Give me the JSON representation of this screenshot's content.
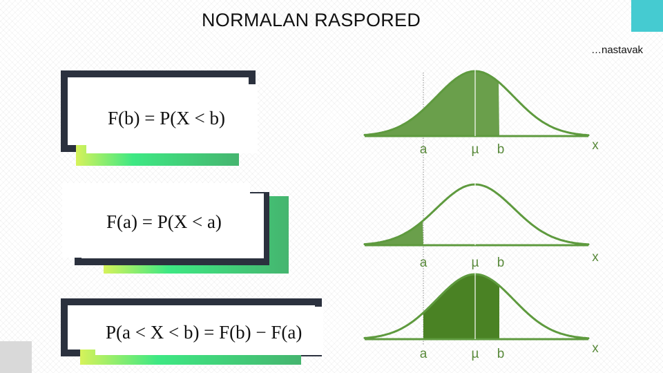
{
  "header": {
    "title": "NORMALAN RASPORED",
    "subtitle": "…nastavak"
  },
  "formulas": {
    "fb": "F(b) = P(X < b)",
    "fa": "F(a) = P(X < a)",
    "fab": "P(a < X < b) = F(b) − F(a)"
  },
  "charts": [
    {
      "shade": "left-of-b",
      "labels": {
        "a": "a",
        "mu": "µ",
        "b": "b",
        "x": "x"
      }
    },
    {
      "shade": "left-of-a",
      "labels": {
        "a": "a",
        "mu": "µ",
        "b": "b",
        "x": "x"
      }
    },
    {
      "shade": "between-a-b",
      "labels": {
        "a": "a",
        "mu": "µ",
        "b": "b",
        "x": "x"
      }
    }
  ],
  "colors": {
    "curve": "#5e9a3e",
    "shade_light": "#6a9f4b",
    "shade_dark": "#4a8224",
    "accent_teal": "#45cbd1",
    "frame_dark": "#2b313e"
  }
}
